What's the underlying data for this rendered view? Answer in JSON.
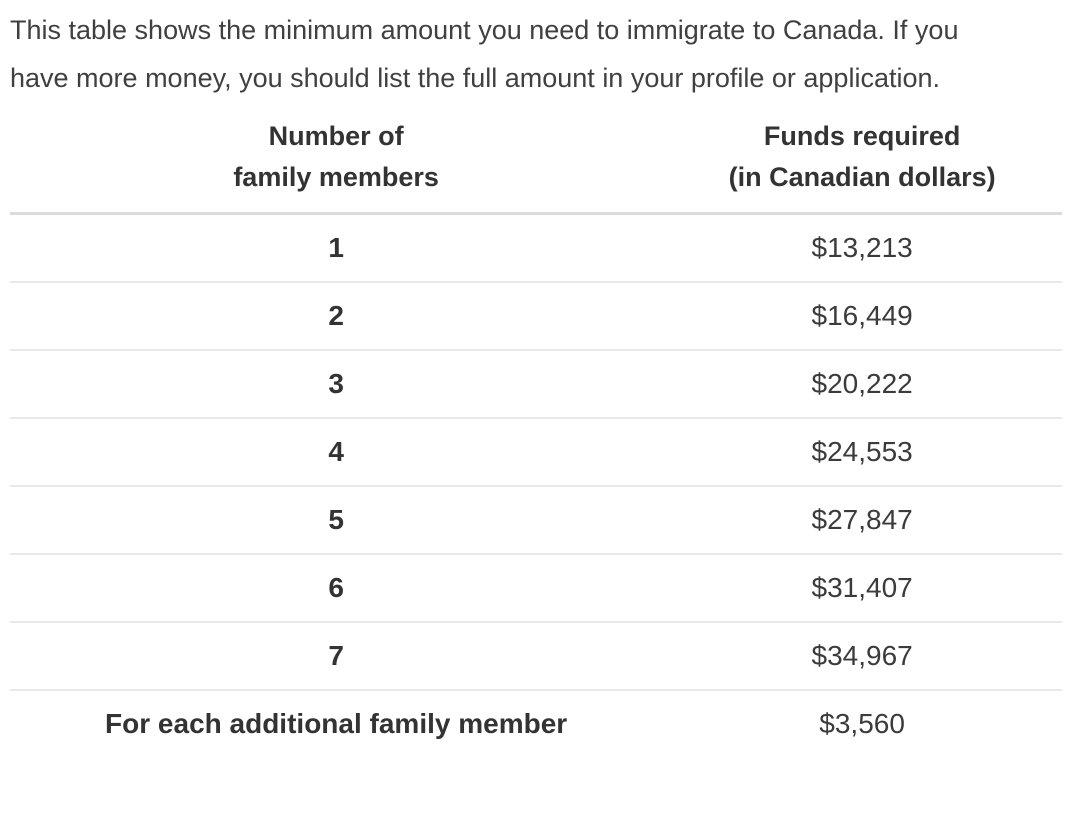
{
  "page": {
    "intro_text": "This table shows the minimum amount you need to immigrate to Canada. If you have more money, you should list the full amount in your profile or application."
  },
  "table": {
    "header": {
      "col1_line1": "Number of",
      "col1_line2": "family members",
      "col2_line1": "Funds required",
      "col2_line2": "(in Canadian dollars)"
    },
    "rows": [
      {
        "members": "1",
        "funds": "$13,213"
      },
      {
        "members": "2",
        "funds": "$16,449"
      },
      {
        "members": "3",
        "funds": "$20,222"
      },
      {
        "members": "4",
        "funds": "$24,553"
      },
      {
        "members": "5",
        "funds": "$27,847"
      },
      {
        "members": "6",
        "funds": "$31,407"
      },
      {
        "members": "7",
        "funds": "$34,967"
      },
      {
        "members": "For each additional family member",
        "funds": "$3,560"
      }
    ]
  },
  "colors": {
    "text": "#3b3b3b",
    "heading_text": "#333333",
    "header_rule": "#dcdcdc",
    "row_rule": "#e9e9e9",
    "background": "#ffffff"
  }
}
